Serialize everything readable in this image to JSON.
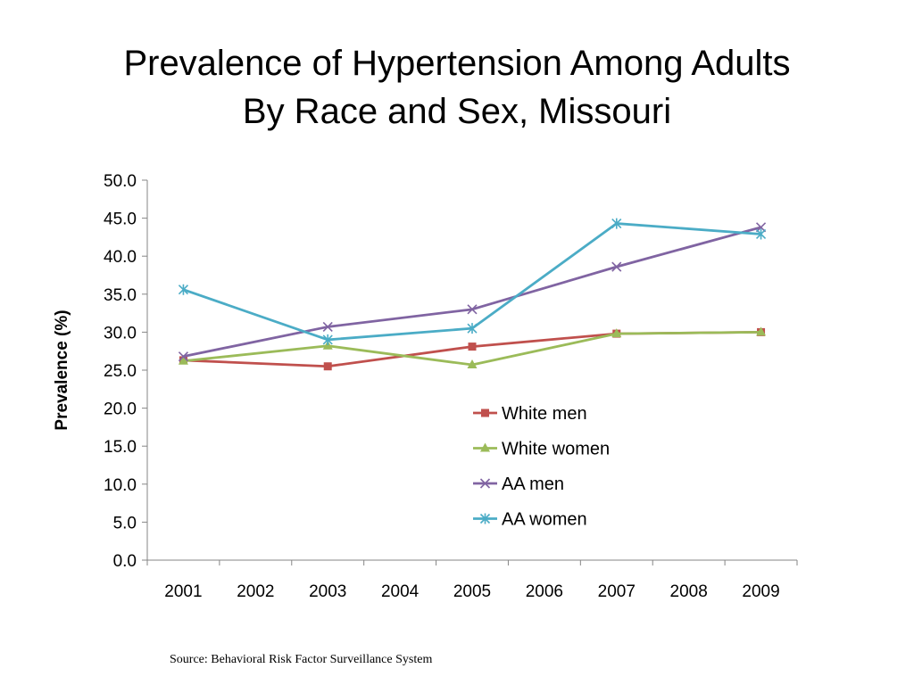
{
  "title_line1": "Prevalence of Hypertension Among Adults",
  "title_line2": "By Race and Sex, Missouri",
  "source": "Source: Behavioral Risk Factor Surveillance System",
  "chart_data": {
    "type": "line",
    "title": "Prevalence of Hypertension Among Adults By Race and Sex, Missouri",
    "ylabel": "Prevalence (%)",
    "xlabel": "",
    "categories": [
      "2001",
      "2002",
      "2003",
      "2004",
      "2005",
      "2006",
      "2007",
      "2008",
      "2009"
    ],
    "yticks": [
      "0.0",
      "5.0",
      "10.0",
      "15.0",
      "20.0",
      "25.0",
      "30.0",
      "35.0",
      "40.0",
      "45.0",
      "50.0"
    ],
    "ylim": [
      0,
      50
    ],
    "grid": false,
    "legend_position": "center-right",
    "series": [
      {
        "name": "White men",
        "color": "#C0504D",
        "marker": "square",
        "points": [
          {
            "x": "2001",
            "y": 26.3
          },
          {
            "x": "2003",
            "y": 25.5
          },
          {
            "x": "2005",
            "y": 28.1
          },
          {
            "x": "2007",
            "y": 29.8
          },
          {
            "x": "2009",
            "y": 30.0
          }
        ]
      },
      {
        "name": "White women",
        "color": "#9BBB59",
        "marker": "triangle",
        "points": [
          {
            "x": "2001",
            "y": 26.2
          },
          {
            "x": "2003",
            "y": 28.2
          },
          {
            "x": "2005",
            "y": 25.7
          },
          {
            "x": "2007",
            "y": 29.8
          },
          {
            "x": "2009",
            "y": 30.0
          }
        ]
      },
      {
        "name": "AA men",
        "color": "#8064A2",
        "marker": "x",
        "points": [
          {
            "x": "2001",
            "y": 26.8
          },
          {
            "x": "2003",
            "y": 30.7
          },
          {
            "x": "2005",
            "y": 33.0
          },
          {
            "x": "2007",
            "y": 38.6
          },
          {
            "x": "2009",
            "y": 43.8
          }
        ]
      },
      {
        "name": "AA women",
        "color": "#4BACC6",
        "marker": "star",
        "points": [
          {
            "x": "2001",
            "y": 35.6
          },
          {
            "x": "2003",
            "y": 29.0
          },
          {
            "x": "2005",
            "y": 30.5
          },
          {
            "x": "2007",
            "y": 44.3
          },
          {
            "x": "2009",
            "y": 42.9
          }
        ]
      }
    ]
  }
}
